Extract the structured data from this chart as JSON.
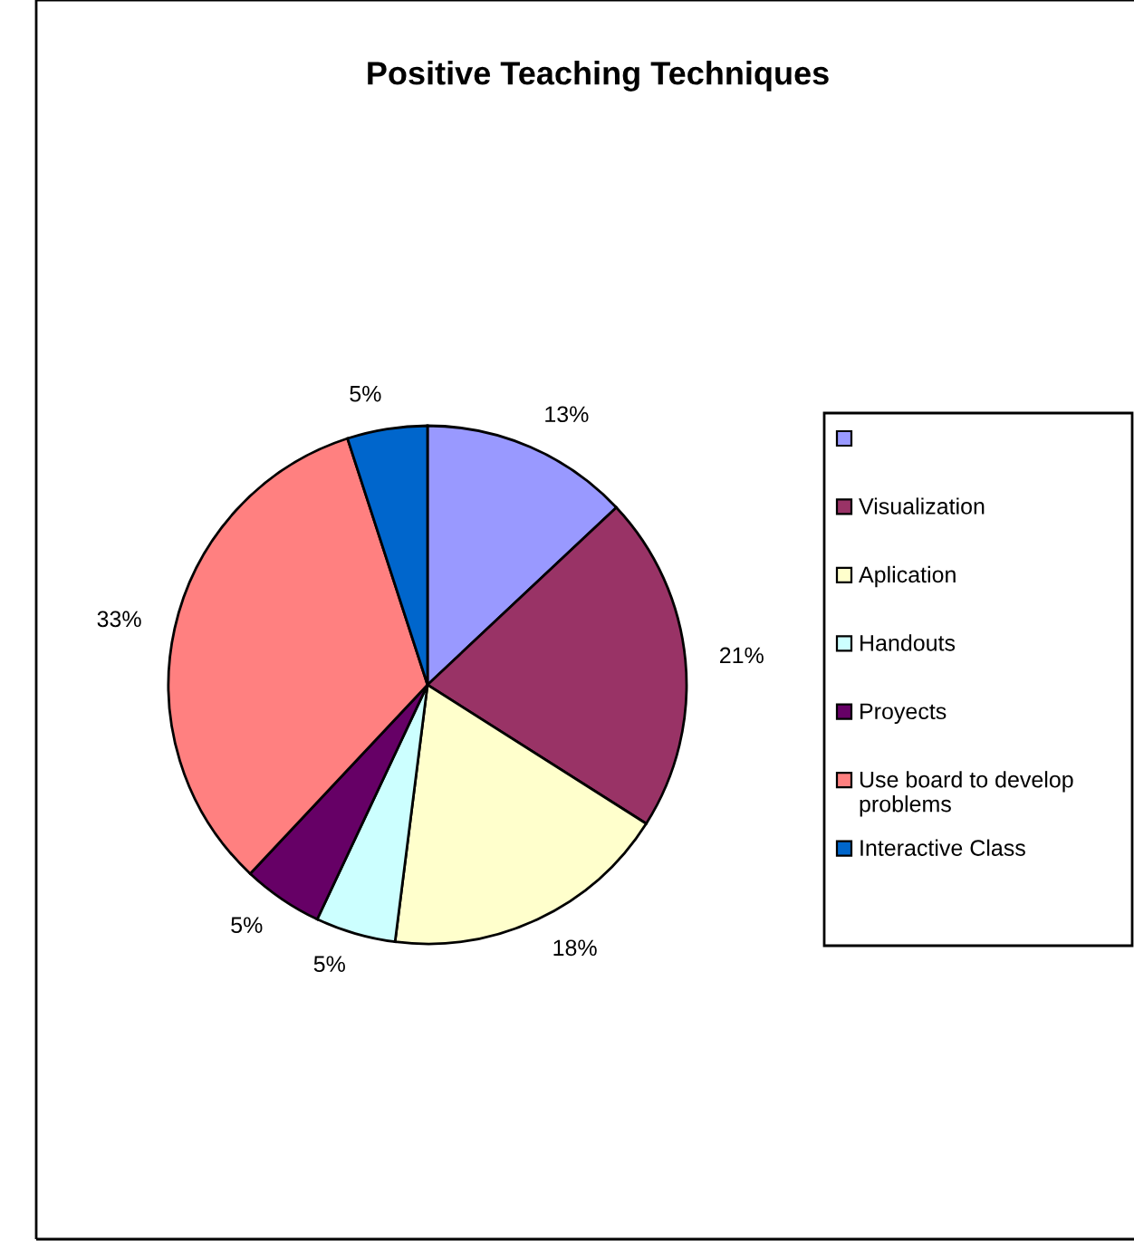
{
  "chart_data": {
    "type": "pie",
    "title": "Positive Teaching Techniques",
    "categories": [
      null,
      "Visualization",
      "Aplication",
      "Handouts",
      "Proyects",
      "Use board to develop problems",
      "Interactive Class"
    ],
    "values": [
      13,
      21,
      18,
      5,
      5,
      33,
      5
    ],
    "value_labels": [
      "13%",
      "21%",
      "18%",
      "5%",
      "5%",
      "33%",
      "5%"
    ],
    "colors": [
      "#9999ff",
      "#993366",
      "#ffffcc",
      "#ccffff",
      "#660066",
      "#ff8080",
      "#0066cc"
    ],
    "legend": "right"
  }
}
